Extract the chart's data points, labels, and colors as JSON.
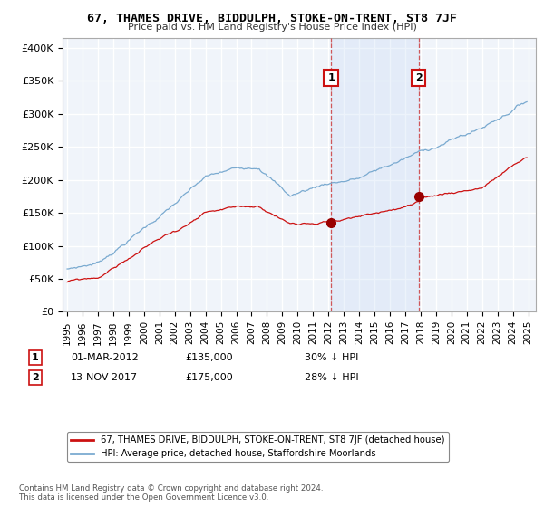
{
  "title": "67, THAMES DRIVE, BIDDULPH, STOKE-ON-TRENT, ST8 7JF",
  "subtitle": "Price paid vs. HM Land Registry's House Price Index (HPI)",
  "ylabel_ticks": [
    "£0",
    "£50K",
    "£100K",
    "£150K",
    "£200K",
    "£250K",
    "£300K",
    "£350K",
    "£400K"
  ],
  "ytick_values": [
    0,
    50000,
    100000,
    150000,
    200000,
    250000,
    300000,
    350000,
    400000
  ],
  "ylim": [
    0,
    415000
  ],
  "xlim_start": 1994.7,
  "xlim_end": 2025.5,
  "hpi_color": "#7aaad0",
  "price_color": "#cc1111",
  "marker1_date": 2012.17,
  "marker1_price": 135000,
  "marker2_date": 2017.87,
  "marker2_price": 175000,
  "legend_label_red": "67, THAMES DRIVE, BIDDULPH, STOKE-ON-TRENT, ST8 7JF (detached house)",
  "legend_label_blue": "HPI: Average price, detached house, Staffordshire Moorlands",
  "annotation1_label": "1",
  "annotation1_date": "01-MAR-2012",
  "annotation1_price": "£135,000",
  "annotation1_pct": "30% ↓ HPI",
  "annotation2_label": "2",
  "annotation2_date": "13-NOV-2017",
  "annotation2_price": "£175,000",
  "annotation2_pct": "28% ↓ HPI",
  "footer": "Contains HM Land Registry data © Crown copyright and database right 2024.\nThis data is licensed under the Open Government Licence v3.0.",
  "bg_color": "#ffffff",
  "plot_bg_color": "#f0f4fa",
  "grid_color": "#ffffff",
  "shade_color": "#ccddf5"
}
